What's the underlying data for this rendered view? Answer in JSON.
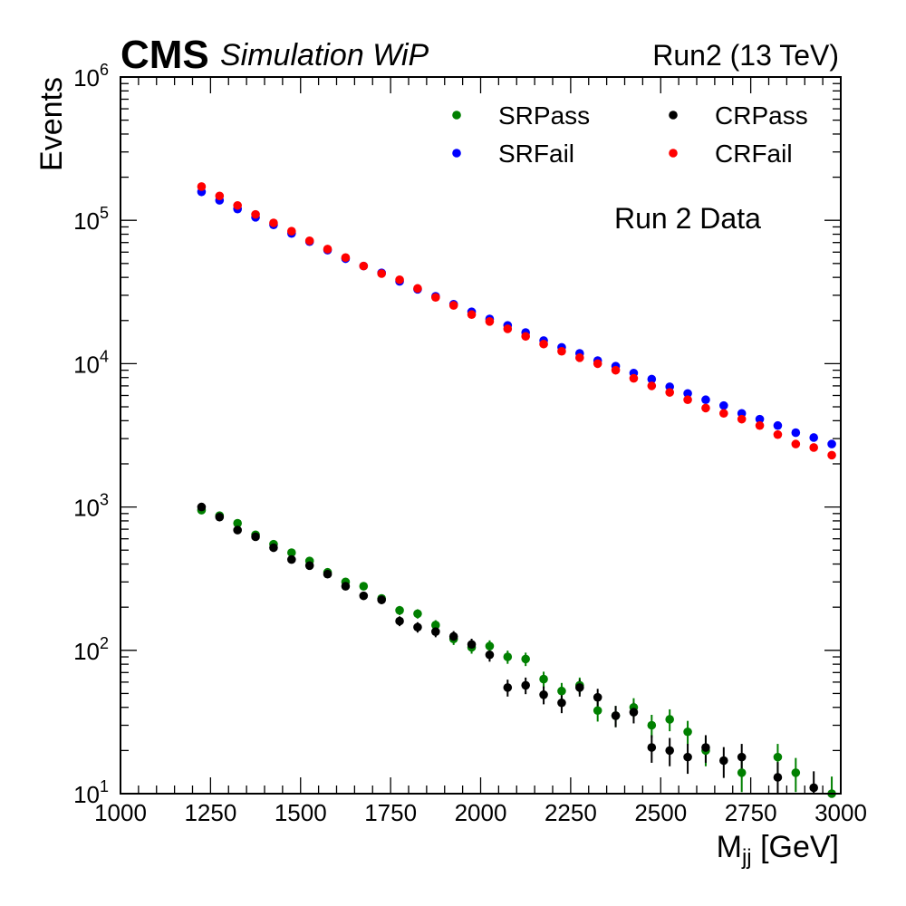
{
  "header": {
    "cms": "CMS",
    "extra": "Simulation WiP",
    "lumi": "Run2 (13 TeV)"
  },
  "annotation": "Run 2 Data",
  "chart_data": {
    "type": "scatter",
    "xlabel": "M",
    "xlabel_sub": "jj",
    "xlabel_unit": " [GeV]",
    "ylabel": "Events",
    "xlim": [
      1000,
      3000
    ],
    "ylim": [
      10,
      1000000
    ],
    "yscale": "log",
    "xticks": [
      1000,
      1250,
      1500,
      1750,
      2000,
      2250,
      2500,
      2750,
      3000
    ],
    "yticks": [
      {
        "value": 10,
        "base": "10",
        "exp": "1"
      },
      {
        "value": 100,
        "base": "10",
        "exp": "2"
      },
      {
        "value": 1000,
        "base": "10",
        "exp": "3"
      },
      {
        "value": 10000,
        "base": "10",
        "exp": "4"
      },
      {
        "value": 100000,
        "base": "10",
        "exp": "5"
      },
      {
        "value": 1000000,
        "base": "10",
        "exp": "6"
      }
    ],
    "legend_position": "top-right",
    "x": [
      1225,
      1275,
      1325,
      1375,
      1425,
      1475,
      1525,
      1575,
      1625,
      1675,
      1725,
      1775,
      1825,
      1875,
      1925,
      1975,
      2025,
      2075,
      2125,
      2175,
      2225,
      2275,
      2325,
      2375,
      2425,
      2475,
      2525,
      2575,
      2625,
      2675,
      2725,
      2775,
      2825,
      2875,
      2925,
      2975
    ],
    "series": [
      {
        "name": "SRPass",
        "color": "#008000",
        "error_bars": true,
        "values": [
          950,
          870,
          770,
          640,
          550,
          480,
          420,
          350,
          300,
          280,
          230,
          190,
          180,
          150,
          120,
          105,
          107,
          90,
          87,
          63,
          52,
          57,
          38,
          35,
          40,
          30,
          33,
          27,
          20,
          null,
          14,
          null,
          18,
          14,
          null,
          10
        ]
      },
      {
        "name": "SRFail",
        "color": "#0000ff",
        "error_bars": false,
        "values": [
          158000,
          138000,
          120000,
          105000,
          93000,
          81000,
          71000,
          62000,
          54000,
          48000,
          43000,
          37500,
          33000,
          29500,
          26000,
          23000,
          20500,
          18500,
          16500,
          14500,
          13000,
          11800,
          10500,
          9600,
          8600,
          7800,
          6900,
          6200,
          5600,
          5100,
          4500,
          4100,
          3700,
          3300,
          3050,
          2750
        ]
      },
      {
        "name": "CRPass",
        "color": "#000000",
        "error_bars": true,
        "values": [
          1000,
          850,
          690,
          620,
          520,
          430,
          390,
          340,
          280,
          240,
          225,
          160,
          145,
          135,
          125,
          110,
          93,
          55,
          57,
          49,
          43,
          55,
          47,
          35,
          37,
          21,
          20,
          18,
          21,
          17,
          18,
          null,
          13,
          null,
          11,
          null
        ]
      },
      {
        "name": "CRFail",
        "color": "#ff0000",
        "error_bars": false,
        "values": [
          172000,
          148000,
          127000,
          110000,
          96000,
          84000,
          72000,
          63000,
          55000,
          48000,
          42500,
          38500,
          33500,
          29000,
          25500,
          22000,
          19700,
          17500,
          15500,
          13700,
          12200,
          11000,
          10000,
          9000,
          7900,
          7000,
          6300,
          5600,
          4900,
          4500,
          4100,
          3700,
          3200,
          2750,
          2600,
          2300
        ]
      }
    ],
    "legend_columns": [
      [
        "SRPass",
        "SRFail"
      ],
      [
        "CRPass",
        "CRFail"
      ]
    ]
  }
}
